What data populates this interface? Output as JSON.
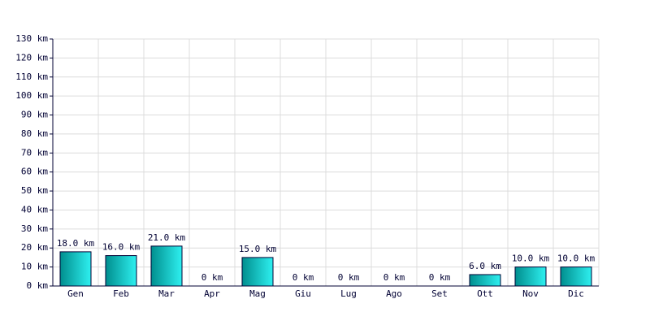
{
  "chart_data": {
    "type": "bar",
    "categories": [
      "Gen",
      "Feb",
      "Mar",
      "Apr",
      "Mag",
      "Giu",
      "Lug",
      "Ago",
      "Set",
      "Ott",
      "Nov",
      "Dic"
    ],
    "values": [
      18,
      16,
      21,
      0,
      15,
      0,
      0,
      0,
      0,
      6,
      10,
      10
    ],
    "value_labels": [
      "18.0 km",
      "16.0 km",
      "21.0 km",
      "0 km",
      "15.0 km",
      "0 km",
      "0 km",
      "0 km",
      "0 km",
      "6.0 km",
      "10.0 km",
      "10.0 km"
    ],
    "color": "#2ef0f0",
    "gradient_color": "#008e8e",
    "ylim": [
      0,
      130
    ],
    "yticks": [
      {
        "value": 0,
        "label": "0 km"
      },
      {
        "value": 10,
        "label": "10 km"
      },
      {
        "value": 20,
        "label": "20 km"
      },
      {
        "value": 30,
        "label": "30 km"
      },
      {
        "value": 40,
        "label": "40 km"
      },
      {
        "value": 50,
        "label": "50 km"
      },
      {
        "value": 60,
        "label": "60 km"
      },
      {
        "value": 70,
        "label": "70 km"
      },
      {
        "value": 80,
        "label": "80 km"
      },
      {
        "value": 90,
        "label": "90 km"
      },
      {
        "value": 100,
        "label": "100 km"
      },
      {
        "value": 110,
        "label": "110 km"
      },
      {
        "value": 120,
        "label": "120 km"
      },
      {
        "value": 130,
        "label": "130 km"
      }
    ],
    "grid": true
  }
}
